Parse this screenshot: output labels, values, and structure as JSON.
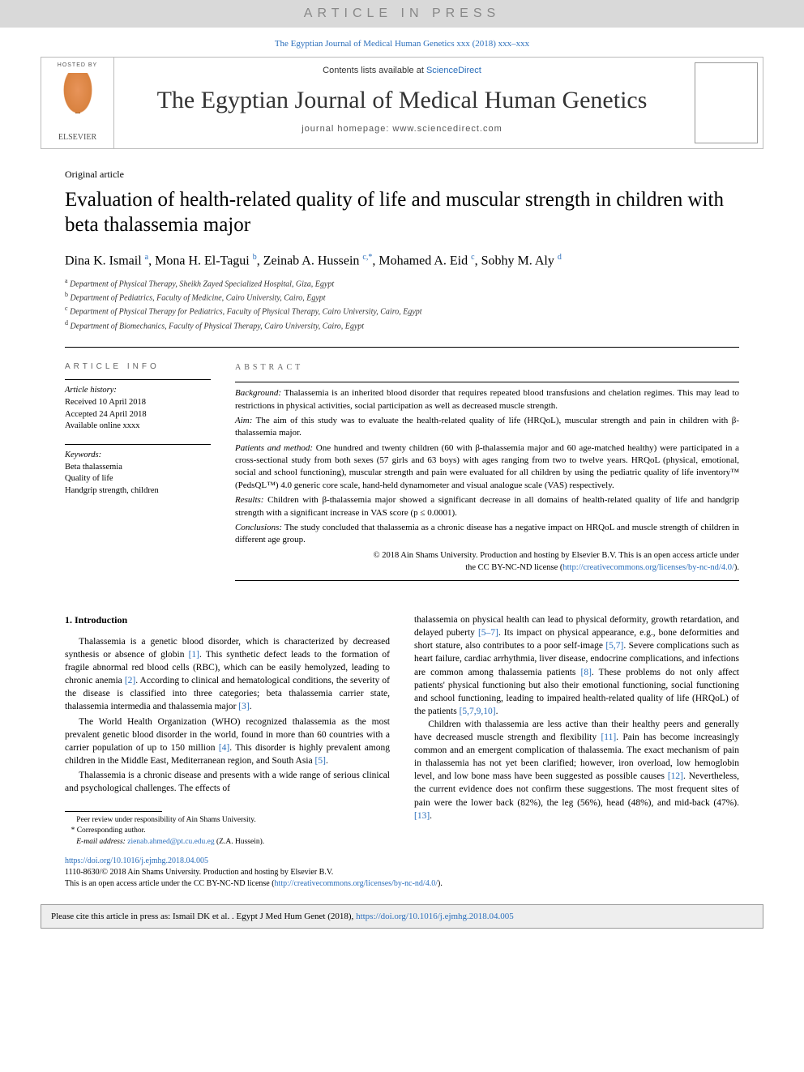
{
  "banner": {
    "text": "ARTICLE IN PRESS",
    "bg": "#d9d9d9",
    "color": "#888888"
  },
  "citation_top": "The Egyptian Journal of Medical Human Genetics xxx (2018) xxx–xxx",
  "header": {
    "hosted_by": "HOSTED BY",
    "publisher": "ELSEVIER",
    "contents_prefix": "Contents lists available at ",
    "contents_link": "ScienceDirect",
    "journal": "The Egyptian Journal of Medical Human Genetics",
    "homepage": "journal homepage: www.sciencedirect.com"
  },
  "article": {
    "type": "Original article",
    "title": "Evaluation of health-related quality of life and muscular strength in children with beta thalassemia major",
    "authors_html": "Dina K. Ismail <sup>a</sup>, Mona H. El-Tagui <sup>b</sup>, Zeinab A. Hussein <sup>c,*</sup>, Mohamed A. Eid <sup>c</sup>, Sobhy M. Aly <sup>d</sup>",
    "affiliations": [
      {
        "sup": "a",
        "text": "Department of Physical Therapy, Sheikh Zayed Specialized Hospital, Giza, Egypt"
      },
      {
        "sup": "b",
        "text": "Department of Pediatrics, Faculty of Medicine, Cairo University, Cairo, Egypt"
      },
      {
        "sup": "c",
        "text": "Department of Physical Therapy for Pediatrics, Faculty of Physical Therapy, Cairo University, Cairo, Egypt"
      },
      {
        "sup": "d",
        "text": "Department of Biomechanics, Faculty of Physical Therapy, Cairo University, Cairo, Egypt"
      }
    ]
  },
  "info": {
    "head": "ARTICLE INFO",
    "history_label": "Article history:",
    "history": [
      "Received 10 April 2018",
      "Accepted 24 April 2018",
      "Available online xxxx"
    ],
    "keywords_label": "Keywords:",
    "keywords": [
      "Beta thalassemia",
      "Quality of life",
      "Handgrip strength, children"
    ]
  },
  "abstract": {
    "head": "ABSTRACT",
    "paras": [
      {
        "label": "Background:",
        "text": " Thalassemia is an inherited blood disorder that requires repeated blood transfusions and chelation regimes. This may lead to restrictions in physical activities, social participation as well as decreased muscle strength."
      },
      {
        "label": "Aim:",
        "text": " The aim of this study was to evaluate the health-related quality of life (HRQoL), muscular strength and pain in children with β-thalassemia major."
      },
      {
        "label": "Patients and method:",
        "text": " One hundred and twenty children (60 with β-thalassemia major and 60 age-matched healthy) were participated in a cross-sectional study from both sexes (57 girls and 63 boys) with ages ranging from two to twelve years. HRQoL (physical, emotional, social and school functioning), muscular strength and pain were evaluated for all children by using the pediatric quality of life inventory™ (PedsQL™) 4.0 generic core scale, hand-held dynamometer and visual analogue scale (VAS) respectively."
      },
      {
        "label": "Results:",
        "text": " Children with β-thalassemia major showed a significant decrease in all domains of health-related quality of life and handgrip strength with a significant increase in VAS score (p ≤ 0.0001)."
      },
      {
        "label": "Conclusions:",
        "text": " The study concluded that thalassemia as a chronic disease has a negative impact on HRQoL and muscle strength of children in different age group."
      }
    ],
    "copyright_line1": "© 2018 Ain Shams University. Production and hosting by Elsevier B.V. This is an open access article under",
    "copyright_line2_prefix": "the CC BY-NC-ND license (",
    "copyright_url": "http://creativecommons.org/licenses/by-nc-nd/4.0/",
    "copyright_suffix": ")."
  },
  "body": {
    "section_head": "1. Introduction",
    "left_paras": [
      "Thalassemia is a genetic blood disorder, which is characterized by decreased synthesis or absence of globin [1]. This synthetic defect leads to the formation of fragile abnormal red blood cells (RBC), which can be easily hemolyzed, leading to chronic anemia [2]. According to clinical and hematological conditions, the severity of the disease is classified into three categories; beta thalassemia carrier state, thalassemia intermedia and thalassemia major [3].",
      "The World Health Organization (WHO) recognized thalassemia as the most prevalent genetic blood disorder in the world, found in more than 60 countries with a carrier population of up to 150 million [4]. This disorder is highly prevalent among children in the Middle East, Mediterranean region, and South Asia [5].",
      "Thalassemia is a chronic disease and presents with a wide range of serious clinical and psychological challenges. The effects of"
    ],
    "right_paras": [
      "thalassemia on physical health can lead to physical deformity, growth retardation, and delayed puberty [5–7]. Its impact on physical appearance, e.g., bone deformities and short stature, also contributes to a poor self-image [5,7]. Severe complications such as heart failure, cardiac arrhythmia, liver disease, endocrine complications, and infections are common among thalassemia patients [8]. These problems do not only affect patients' physical functioning but also their emotional functioning, social functioning and school functioning, leading to impaired health-related quality of life (HRQoL) of the patients [5,7,9,10].",
      "Children with thalassemia are less active than their healthy peers and generally have decreased muscle strength and flexibility [11]. Pain has become increasingly common and an emergent complication of thalassemia. The exact mechanism of pain in thalassemia has not yet been clarified; however, iron overload, low hemoglobin level, and low bone mass have been suggested as possible causes [12]. Nevertheless, the current evidence does not confirm these suggestions. The most frequent sites of pain were the lower back (82%), the leg (56%), head (48%), and mid-back (47%). [13]."
    ]
  },
  "footnotes": {
    "peer": "Peer review under responsibility of Ain Shams University.",
    "corr_label": "* Corresponding author.",
    "email_label": "E-mail address: ",
    "email": "zienab.ahmed@pt.cu.edu.eg",
    "email_suffix": " (Z.A. Hussein)."
  },
  "doi": {
    "url": "https://doi.org/10.1016/j.ejmhg.2018.04.005",
    "issn_line": "1110-8630/© 2018 Ain Shams University. Production and hosting by Elsevier B.V.",
    "oa_prefix": "This is an open access article under the CC BY-NC-ND license (",
    "oa_url": "http://creativecommons.org/licenses/by-nc-nd/4.0/",
    "oa_suffix": ")."
  },
  "cite_box": {
    "prefix": "Please cite this article in press as: Ismail DK et al. . Egypt J Med Hum Genet (2018), ",
    "url": "https://doi.org/10.1016/j.ejmhg.2018.04.005"
  },
  "colors": {
    "link": "#2a6ebb",
    "border": "#bbbbbb",
    "text": "#000000"
  },
  "refs_in_body": [
    "[1]",
    "[2]",
    "[3]",
    "[4]",
    "[5]",
    "[5–7]",
    "[5,7]",
    "[8]",
    "[5,7,9,10]",
    "[11]",
    "[12]",
    "[13]"
  ]
}
